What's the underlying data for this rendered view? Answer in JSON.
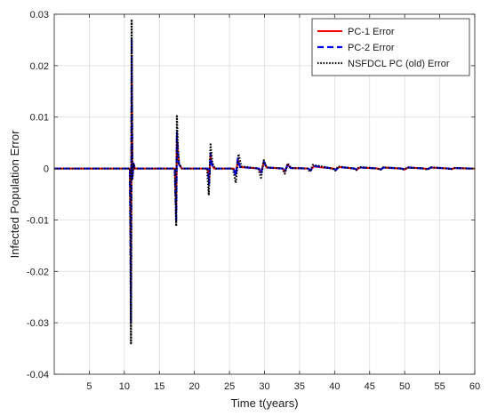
{
  "chart_data": {
    "type": "line",
    "title": "",
    "xlabel": "Time t(years)",
    "ylabel": "Infected Population Error",
    "xlim": [
      0,
      60
    ],
    "ylim": [
      -0.04,
      0.03
    ],
    "xticks": [
      5,
      10,
      15,
      20,
      25,
      30,
      35,
      40,
      45,
      50,
      55,
      60
    ],
    "yticks": [
      -0.04,
      -0.03,
      -0.02,
      -0.01,
      0,
      0.01,
      0.02,
      0.03
    ],
    "ytick_labels": [
      "-0.04",
      "-0.03",
      "-0.02",
      "-0.01",
      "0",
      "0.01",
      "0.02",
      "0.03"
    ],
    "grid": true,
    "legend_position": "top-right",
    "series": [
      {
        "name": "PC-1 Error",
        "color": "#ff0000",
        "style": "solid",
        "x": [
          0,
          10.8,
          10.95,
          11.05,
          11.15,
          11.3,
          11.5,
          17.2,
          17.4,
          17.5,
          17.65,
          17.8,
          18.2,
          21.9,
          22.1,
          22.3,
          22.5,
          22.8,
          25.6,
          25.9,
          26.2,
          26.5,
          29.2,
          29.5,
          29.9,
          30.3,
          32.6,
          32.9,
          33.3,
          33.7,
          36.2,
          36.6,
          37.0,
          39.8,
          40.2,
          40.6,
          42.8,
          43.2,
          43.6,
          46.2,
          46.6,
          47.0,
          49.5,
          50.0,
          50.5,
          52.8,
          53.3,
          53.8,
          56.2,
          56.7,
          57.2,
          59.2,
          60
        ],
        "y": [
          0,
          0,
          -0.024,
          0.022,
          -0.002,
          0.001,
          0,
          0,
          -0.008,
          0.006,
          0.003,
          0.0008,
          0,
          0,
          -0.0025,
          0.0025,
          0.0008,
          0,
          0,
          -0.0012,
          0.0018,
          0.0003,
          0,
          -0.0008,
          0.0012,
          0.0002,
          0,
          -0.0006,
          0.0008,
          0.0001,
          0,
          -0.0003,
          0.0004,
          0,
          -0.0002,
          0.0003,
          0,
          -0.0002,
          0.0002,
          0,
          -0.0002,
          0.0002,
          0,
          -0.0002,
          0.0002,
          0,
          -0.0001,
          0.0002,
          0,
          -0.0001,
          0.0001,
          0,
          0
        ]
      },
      {
        "name": "PC-2 Error",
        "color": "#0000ff",
        "style": "dashed",
        "x": [
          0,
          10.8,
          10.95,
          11.05,
          11.15,
          11.3,
          11.5,
          17.2,
          17.4,
          17.5,
          17.65,
          17.8,
          18.2,
          21.9,
          22.1,
          22.3,
          22.5,
          22.8,
          25.6,
          25.9,
          26.2,
          26.5,
          29.2,
          29.5,
          29.9,
          30.3,
          32.6,
          32.9,
          33.3,
          33.7,
          36.2,
          36.6,
          37.0,
          39.8,
          40.2,
          40.6,
          42.8,
          43.2,
          43.6,
          46.2,
          46.6,
          47.0,
          49.5,
          50.0,
          50.5,
          52.8,
          53.3,
          53.8,
          56.2,
          56.7,
          57.2,
          59.2,
          60
        ],
        "y": [
          0,
          0,
          -0.03,
          0.025,
          -0.002,
          0.001,
          0,
          0,
          -0.01,
          0.007,
          0.003,
          0.0008,
          0,
          0,
          -0.003,
          0.003,
          0.0008,
          0,
          0,
          -0.0015,
          0.002,
          0.0003,
          0,
          -0.001,
          0.0013,
          0.0002,
          0,
          -0.0007,
          0.0008,
          0.0001,
          0,
          -0.0004,
          0.0005,
          0,
          -0.0003,
          0.0003,
          0,
          -0.0002,
          0.0002,
          0,
          -0.0002,
          0.0002,
          0,
          -0.0002,
          0.0002,
          0,
          -0.0001,
          0.0002,
          0,
          -0.0001,
          0.0001,
          0,
          0
        ]
      },
      {
        "name": "NSFDCL PC (old) Error",
        "color": "#000000",
        "style": "dotted",
        "x": [
          0,
          10.8,
          10.95,
          11.05,
          11.15,
          11.3,
          11.5,
          17.2,
          17.4,
          17.5,
          17.65,
          17.8,
          18.2,
          21.8,
          22.05,
          22.3,
          22.55,
          22.9,
          25.5,
          25.9,
          26.3,
          26.7,
          29.1,
          29.5,
          29.9,
          30.3,
          32.5,
          32.9,
          33.3,
          33.8,
          36.1,
          36.5,
          36.9,
          39.7,
          40.1,
          40.5,
          42.7,
          43.1,
          43.5,
          46.1,
          46.5,
          46.9,
          49.4,
          49.9,
          50.4,
          52.7,
          53.2,
          53.7,
          56.1,
          56.6,
          57.1,
          59.2,
          60
        ],
        "y": [
          0,
          0,
          -0.034,
          0.029,
          -0.002,
          0.001,
          0,
          0,
          -0.0112,
          0.0102,
          0.004,
          0.001,
          0,
          0,
          -0.0052,
          0.0047,
          0.0012,
          0,
          0,
          -0.0028,
          0.0028,
          0.0004,
          0,
          -0.0018,
          0.0016,
          0.0002,
          0,
          -0.001,
          0.001,
          0.0001,
          0,
          -0.0006,
          0.0007,
          0,
          -0.0004,
          0.0004,
          0,
          -0.0003,
          0.0003,
          0,
          -0.0003,
          0.0002,
          0,
          -0.0002,
          0.0002,
          0,
          -0.0002,
          0.0002,
          0,
          -0.0001,
          0.0001,
          0,
          0
        ]
      }
    ]
  }
}
